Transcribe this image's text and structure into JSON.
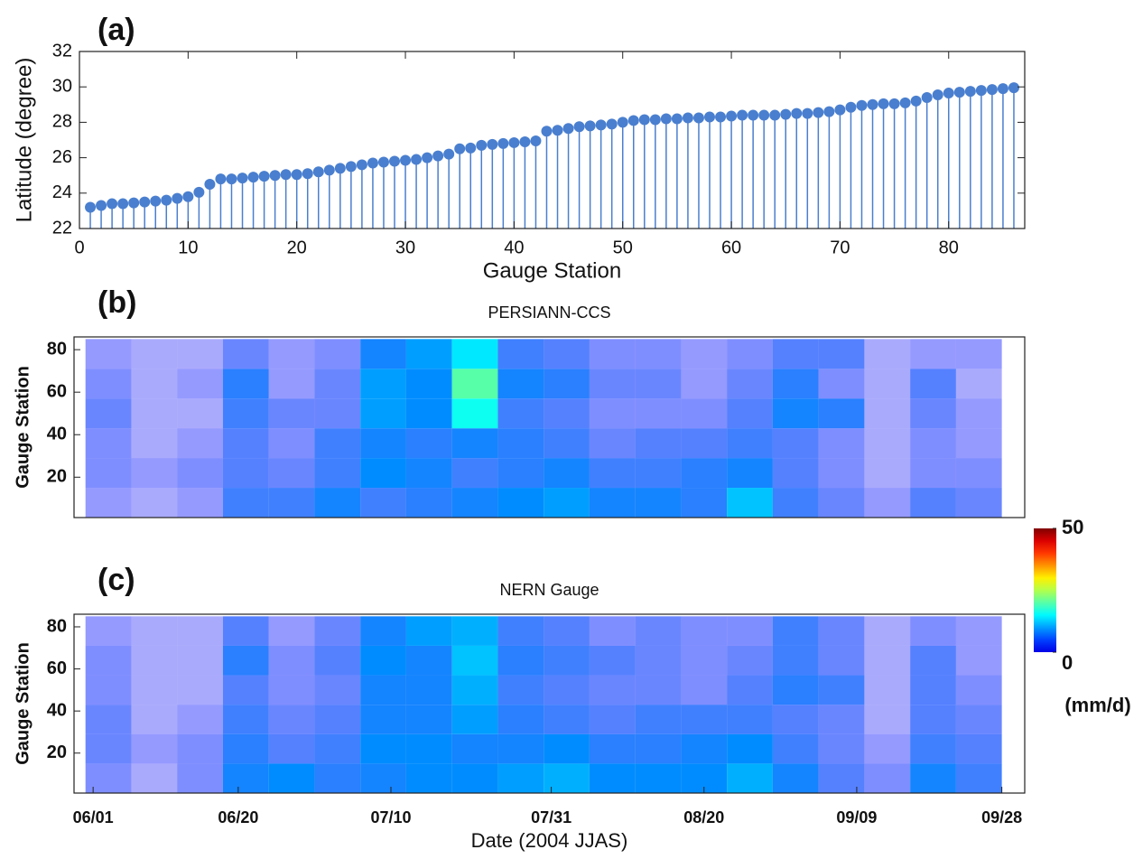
{
  "chart_data": [
    {
      "type": "stem",
      "panel_label": "(a)",
      "xlabel": "Gauge Station",
      "ylabel": "Latitude (degree)",
      "color": "#4a7fcf",
      "x": [
        1,
        2,
        3,
        4,
        5,
        6,
        7,
        8,
        9,
        10,
        11,
        12,
        13,
        14,
        15,
        16,
        17,
        18,
        19,
        20,
        21,
        22,
        23,
        24,
        25,
        26,
        27,
        28,
        29,
        30,
        31,
        32,
        33,
        34,
        35,
        36,
        37,
        38,
        39,
        40,
        41,
        42,
        43,
        44,
        45,
        46,
        47,
        48,
        49,
        50,
        51,
        52,
        53,
        54,
        55,
        56,
        57,
        58,
        59,
        60,
        61,
        62,
        63,
        64,
        65,
        66,
        67,
        68,
        69,
        70,
        71,
        72,
        73,
        74,
        75,
        76,
        77,
        78,
        79,
        80,
        81,
        82,
        83,
        84,
        85,
        86
      ],
      "values": [
        23.2,
        23.3,
        23.4,
        23.4,
        23.45,
        23.5,
        23.55,
        23.6,
        23.7,
        23.8,
        24.05,
        24.5,
        24.8,
        24.8,
        24.85,
        24.9,
        24.95,
        25.0,
        25.05,
        25.05,
        25.1,
        25.2,
        25.3,
        25.4,
        25.5,
        25.6,
        25.7,
        25.75,
        25.8,
        25.85,
        25.9,
        26.0,
        26.1,
        26.2,
        26.5,
        26.55,
        26.7,
        26.75,
        26.8,
        26.85,
        26.9,
        26.95,
        27.5,
        27.55,
        27.65,
        27.75,
        27.8,
        27.85,
        27.9,
        28.0,
        28.1,
        28.15,
        28.15,
        28.2,
        28.2,
        28.25,
        28.25,
        28.3,
        28.3,
        28.35,
        28.4,
        28.4,
        28.4,
        28.4,
        28.45,
        28.5,
        28.5,
        28.55,
        28.6,
        28.7,
        28.85,
        28.95,
        29.0,
        29.05,
        29.05,
        29.1,
        29.2,
        29.4,
        29.55,
        29.65,
        29.7,
        29.75,
        29.8,
        29.85,
        29.9,
        29.95
      ],
      "xlim": [
        0,
        87
      ],
      "xticks": [
        0,
        10,
        20,
        30,
        40,
        50,
        60,
        70,
        80
      ],
      "ylim": [
        22,
        32
      ],
      "yticks": [
        22,
        24,
        26,
        28,
        30,
        32
      ]
    },
    {
      "type": "heatmap",
      "panel_label": "(b)",
      "title": "PERSIANN-CCS",
      "ylabel": "Gauge Station",
      "x": [
        3,
        9,
        15,
        21,
        27,
        33,
        39,
        45,
        51,
        57,
        63,
        69,
        75,
        81,
        87,
        93,
        99,
        105,
        111,
        117
      ],
      "y": [
        8,
        22,
        36,
        50,
        64,
        78
      ],
      "z": [
        [
          2,
          1,
          2,
          6,
          6,
          8,
          6,
          7,
          8,
          9,
          10,
          8,
          8,
          7,
          12,
          6,
          4,
          2,
          5,
          4
        ],
        [
          3,
          2,
          3,
          5,
          4,
          6,
          9,
          8,
          6,
          7,
          8,
          6,
          6,
          7,
          8,
          5,
          3,
          1,
          3,
          3
        ],
        [
          3,
          1,
          2,
          5,
          3,
          6,
          8,
          7,
          8,
          7,
          6,
          4,
          5,
          5,
          6,
          5,
          3,
          1,
          3,
          2
        ],
        [
          4,
          1,
          1,
          6,
          4,
          4,
          10,
          9,
          16,
          6,
          5,
          3,
          3,
          3,
          5,
          8,
          7,
          1,
          4,
          2
        ],
        [
          3,
          1,
          2,
          7,
          2,
          4,
          10,
          9,
          20,
          8,
          7,
          4,
          4,
          2,
          4,
          7,
          3,
          1,
          5,
          1
        ],
        [
          2,
          1,
          1,
          4,
          2,
          3,
          8,
          10,
          14,
          6,
          5,
          3,
          3,
          2,
          3,
          5,
          5,
          1,
          2,
          2
        ]
      ],
      "xlim": [
        -1.5,
        123
      ],
      "ylim": [
        1,
        86
      ],
      "yticks": [
        20,
        40,
        60,
        80
      ]
    },
    {
      "type": "heatmap",
      "panel_label": "(c)",
      "title": "NERN Gauge",
      "ylabel": "Gauge Station",
      "xlabel": "Date (2004 JJAS)",
      "x": [
        3,
        9,
        15,
        21,
        27,
        33,
        39,
        45,
        51,
        57,
        63,
        69,
        75,
        81,
        87,
        93,
        99,
        105,
        111,
        117
      ],
      "y": [
        8,
        22,
        36,
        50,
        64,
        78
      ],
      "z": [
        [
          3,
          1,
          3,
          8,
          9,
          7,
          8,
          9,
          9,
          10,
          11,
          9,
          9,
          9,
          11,
          8,
          5,
          3,
          8,
          6
        ],
        [
          4,
          2,
          3,
          7,
          5,
          6,
          9,
          9,
          8,
          8,
          9,
          7,
          7,
          8,
          9,
          6,
          4,
          2,
          6,
          5
        ],
        [
          4,
          1,
          2,
          6,
          4,
          5,
          8,
          8,
          10,
          7,
          6,
          5,
          6,
          6,
          6,
          5,
          4,
          1,
          5,
          4
        ],
        [
          3,
          1,
          1,
          5,
          3,
          4,
          8,
          8,
          11,
          6,
          5,
          4,
          4,
          3,
          5,
          7,
          6,
          1,
          5,
          3
        ],
        [
          3,
          1,
          1,
          7,
          3,
          5,
          9,
          8,
          12,
          7,
          6,
          5,
          4,
          3,
          4,
          6,
          4,
          1,
          5,
          2
        ],
        [
          2,
          1,
          1,
          5,
          2,
          4,
          8,
          10,
          11,
          6,
          5,
          3,
          4,
          3,
          3,
          6,
          4,
          1,
          3,
          2
        ]
      ],
      "xlim": [
        -1.5,
        123
      ],
      "ylim": [
        1,
        86
      ],
      "yticks": [
        20,
        40,
        60,
        80
      ],
      "xticks": [
        {
          "value": 1,
          "label": "06/01"
        },
        {
          "value": 20,
          "label": "06/20"
        },
        {
          "value": 40,
          "label": "07/10"
        },
        {
          "value": 61,
          "label": "07/31"
        },
        {
          "value": 81,
          "label": "08/20"
        },
        {
          "value": 101,
          "label": "09/09"
        },
        {
          "value": 120,
          "label": "09/28"
        }
      ]
    },
    {
      "type": "colorbar",
      "label": "(mm/d)",
      "clim": [
        0,
        50
      ],
      "cticks": [
        0,
        50
      ]
    }
  ]
}
